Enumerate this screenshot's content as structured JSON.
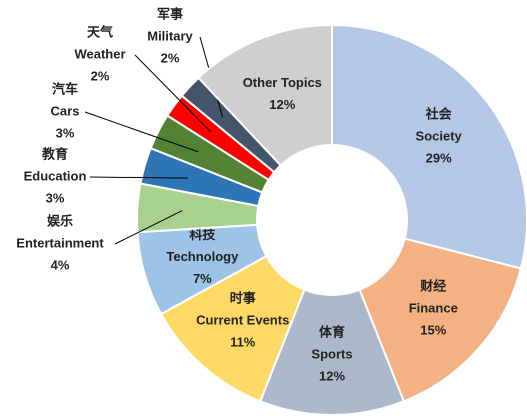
{
  "chart_data": {
    "type": "donut",
    "categories": [
      "Society",
      "Finance",
      "Sports",
      "Current Events",
      "Technology",
      "Entertainment",
      "Education",
      "Cars",
      "Weather",
      "Military",
      "Other Topics"
    ],
    "categories_zh": [
      "社会",
      "财经",
      "体育",
      "时事",
      "科技",
      "娱乐",
      "教育",
      "汽车",
      "天气",
      "军事",
      null
    ],
    "values": [
      29,
      15,
      12,
      11,
      7,
      4,
      3,
      3,
      2,
      2,
      12
    ],
    "value_labels": [
      "29%",
      "15%",
      "12%",
      "11%",
      "7%",
      "4%",
      "3%",
      "3%",
      "2%",
      "2%",
      "12%"
    ],
    "colors": [
      "#b4c7e7",
      "#f4b183",
      "#adb9ca",
      "#ffd966",
      "#9dc3e6",
      "#a9d18e",
      "#2e75b6",
      "#548235",
      "#ff0000",
      "#44546a",
      "#d0cece"
    ]
  }
}
